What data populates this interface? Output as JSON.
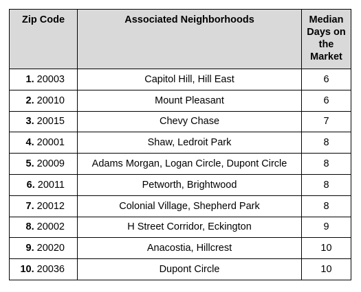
{
  "table": {
    "headers": {
      "zip": "Zip Code",
      "neighborhoods": "Associated Neighborhoods",
      "days": "Median Days on the Market"
    },
    "rows": [
      {
        "rank": "1.",
        "zip": "20003",
        "neighborhoods": "Capitol Hill, Hill East",
        "days": "6"
      },
      {
        "rank": "2.",
        "zip": "20010",
        "neighborhoods": "Mount Pleasant",
        "days": "6"
      },
      {
        "rank": "3.",
        "zip": "20015",
        "neighborhoods": "Chevy Chase",
        "days": "7"
      },
      {
        "rank": "4.",
        "zip": "20001",
        "neighborhoods": "Shaw, Ledroit Park",
        "days": "8"
      },
      {
        "rank": "5.",
        "zip": "20009",
        "neighborhoods": "Adams Morgan, Logan Circle, Dupont Circle",
        "days": "8"
      },
      {
        "rank": "6.",
        "zip": "20011",
        "neighborhoods": "Petworth, Brightwood",
        "days": "8"
      },
      {
        "rank": "7.",
        "zip": "20012",
        "neighborhoods": "Colonial Village, Shepherd Park",
        "days": "8"
      },
      {
        "rank": "8.",
        "zip": "20002",
        "neighborhoods": "H Street Corridor, Eckington",
        "days": "9"
      },
      {
        "rank": "9.",
        "zip": "20020",
        "neighborhoods": "Anacostia, Hillcrest",
        "days": "10"
      },
      {
        "rank": "10.",
        "zip": "20036",
        "neighborhoods": "Dupont Circle",
        "days": "10"
      }
    ]
  }
}
